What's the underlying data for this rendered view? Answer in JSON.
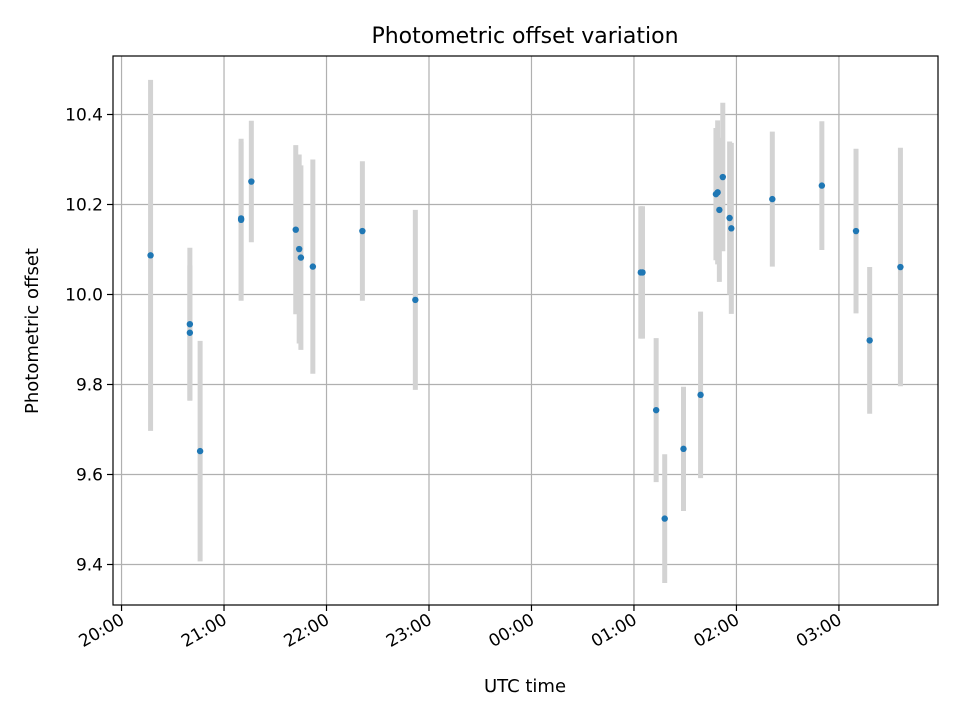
{
  "chart_data": {
    "type": "scatter",
    "title": "Photometric offset variation",
    "xlabel": "UTC time",
    "ylabel": "Photometric offset",
    "x_kind": "time",
    "xlim": [
      "2024-01-01T19:55",
      "2024-01-02T03:58"
    ],
    "ylim": [
      9.31,
      10.53
    ],
    "xticks": [
      {
        "t": "2024-01-01T20:00",
        "label": "20:00"
      },
      {
        "t": "2024-01-01T21:00",
        "label": "21:00"
      },
      {
        "t": "2024-01-01T22:00",
        "label": "22:00"
      },
      {
        "t": "2024-01-01T23:00",
        "label": "23:00"
      },
      {
        "t": "2024-01-02T00:00",
        "label": "00:00"
      },
      {
        "t": "2024-01-02T01:00",
        "label": "01:00"
      },
      {
        "t": "2024-01-02T02:00",
        "label": "02:00"
      },
      {
        "t": "2024-01-02T03:00",
        "label": "03:00"
      }
    ],
    "yticks": [
      {
        "v": 9.4,
        "label": "9.4"
      },
      {
        "v": 9.6,
        "label": "9.6"
      },
      {
        "v": 9.8,
        "label": "9.8"
      },
      {
        "v": 10.0,
        "label": "10.0"
      },
      {
        "v": 10.2,
        "label": "10.2"
      },
      {
        "v": 10.4,
        "label": "10.4"
      }
    ],
    "grid": true,
    "colors": {
      "point": "#1f77b4",
      "errorbar": "#d3d3d3",
      "grid": "#b0b0b0"
    },
    "points": [
      {
        "t": "2024-01-01T20:17",
        "y": 10.087,
        "err": 0.39
      },
      {
        "t": "2024-01-01T20:40",
        "y": 9.934,
        "err": 0.17
      },
      {
        "t": "2024-01-01T20:40",
        "y": 9.915,
        "err": 0.15
      },
      {
        "t": "2024-01-01T20:46",
        "y": 9.652,
        "err": 0.245
      },
      {
        "t": "2024-01-01T21:10",
        "y": 10.166,
        "err": 0.18
      },
      {
        "t": "2024-01-01T21:10",
        "y": 10.169,
        "err": 0.17
      },
      {
        "t": "2024-01-01T21:16",
        "y": 10.251,
        "err": 0.135
      },
      {
        "t": "2024-01-01T21:42",
        "y": 10.144,
        "err": 0.188
      },
      {
        "t": "2024-01-01T21:44",
        "y": 10.101,
        "err": 0.21
      },
      {
        "t": "2024-01-01T21:45",
        "y": 10.082,
        "err": 0.205
      },
      {
        "t": "2024-01-01T21:52",
        "y": 10.062,
        "err": 0.238
      },
      {
        "t": "2024-01-01T22:21",
        "y": 10.141,
        "err": 0.155
      },
      {
        "t": "2024-01-01T22:52",
        "y": 9.988,
        "err": 0.2
      },
      {
        "t": "2024-01-02T01:04",
        "y": 10.049,
        "err": 0.147
      },
      {
        "t": "2024-01-02T01:05",
        "y": 10.049,
        "err": 0.147
      },
      {
        "t": "2024-01-02T01:13",
        "y": 9.743,
        "err": 0.16
      },
      {
        "t": "2024-01-02T01:18",
        "y": 9.502,
        "err": 0.143
      },
      {
        "t": "2024-01-02T01:29",
        "y": 9.657,
        "err": 0.138
      },
      {
        "t": "2024-01-02T01:39",
        "y": 9.777,
        "err": 0.185
      },
      {
        "t": "2024-01-02T01:48",
        "y": 10.223,
        "err": 0.147
      },
      {
        "t": "2024-01-02T01:49",
        "y": 10.227,
        "err": 0.16
      },
      {
        "t": "2024-01-02T01:50",
        "y": 10.188,
        "err": 0.16
      },
      {
        "t": "2024-01-02T01:52",
        "y": 10.261,
        "err": 0.165
      },
      {
        "t": "2024-01-02T01:56",
        "y": 10.17,
        "err": 0.17
      },
      {
        "t": "2024-01-02T01:57",
        "y": 10.147,
        "err": 0.19
      },
      {
        "t": "2024-01-02T02:21",
        "y": 10.212,
        "err": 0.15
      },
      {
        "t": "2024-01-02T02:50",
        "y": 10.242,
        "err": 0.143
      },
      {
        "t": "2024-01-02T03:10",
        "y": 10.141,
        "err": 0.183
      },
      {
        "t": "2024-01-02T03:18",
        "y": 9.898,
        "err": 0.163
      },
      {
        "t": "2024-01-02T03:36",
        "y": 10.061,
        "err": 0.265
      }
    ]
  }
}
